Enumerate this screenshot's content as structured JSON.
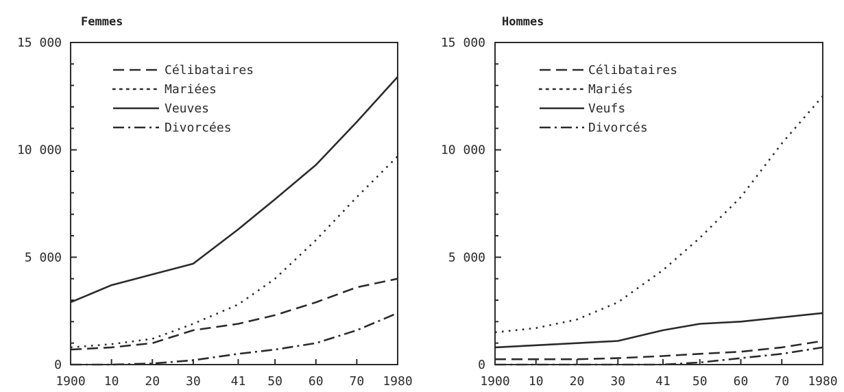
{
  "chart_data": [
    {
      "type": "line",
      "title": "Femmes",
      "xlabel": "",
      "ylabel": "",
      "x": [
        1900,
        1910,
        1920,
        1930,
        1941,
        1950,
        1960,
        1970,
        1980
      ],
      "x_tick_labels": [
        "1900",
        "10",
        "20",
        "30",
        "41",
        "50",
        "60",
        "70",
        "1980"
      ],
      "y_ticks": [
        0,
        5000,
        10000,
        15000
      ],
      "y_tick_labels": [
        "0",
        "5 000",
        "10 000",
        "15 000"
      ],
      "ylim": [
        0,
        15000
      ],
      "xlim": [
        1900,
        1980
      ],
      "grid": false,
      "legend_position": "top-left",
      "series": [
        {
          "name": "Célibataires",
          "style": "dashed",
          "values": [
            700,
            800,
            1000,
            1600,
            1900,
            2300,
            2900,
            3600,
            4000
          ]
        },
        {
          "name": "Mariées",
          "style": "dotted",
          "values": [
            800,
            950,
            1200,
            1900,
            2800,
            4000,
            5800,
            7800,
            9700
          ]
        },
        {
          "name": "Veuves",
          "style": "solid",
          "values": [
            2900,
            3700,
            4200,
            4700,
            6300,
            7700,
            9300,
            11300,
            13400
          ]
        },
        {
          "name": "Divorcées",
          "style": "dashdot",
          "values": [
            0,
            0,
            50,
            200,
            500,
            700,
            1000,
            1600,
            2400
          ]
        }
      ]
    },
    {
      "type": "line",
      "title": "Hommes",
      "xlabel": "",
      "ylabel": "",
      "x": [
        1900,
        1910,
        1920,
        1930,
        1941,
        1950,
        1960,
        1970,
        1980
      ],
      "x_tick_labels": [
        "1900",
        "10",
        "20",
        "30",
        "41",
        "50",
        "60",
        "70",
        "1980"
      ],
      "y_ticks": [
        0,
        5000,
        10000,
        15000
      ],
      "y_tick_labels": [
        "0",
        "5 000",
        "10 000",
        "15 000"
      ],
      "ylim": [
        0,
        15000
      ],
      "xlim": [
        1900,
        1980
      ],
      "grid": false,
      "legend_position": "top-left",
      "series": [
        {
          "name": "Célibataires",
          "style": "dashed",
          "values": [
            250,
            250,
            250,
            300,
            400,
            500,
            600,
            800,
            1100
          ]
        },
        {
          "name": "Mariés",
          "style": "dotted",
          "values": [
            1500,
            1700,
            2100,
            2900,
            4400,
            5900,
            7800,
            10300,
            12500
          ]
        },
        {
          "name": "Veufs",
          "style": "solid",
          "values": [
            800,
            900,
            1000,
            1100,
            1600,
            1900,
            2000,
            2200,
            2400
          ]
        },
        {
          "name": "Divorcés",
          "style": "dashdot",
          "values": [
            0,
            0,
            0,
            0,
            0,
            100,
            300,
            500,
            800
          ]
        }
      ]
    }
  ]
}
